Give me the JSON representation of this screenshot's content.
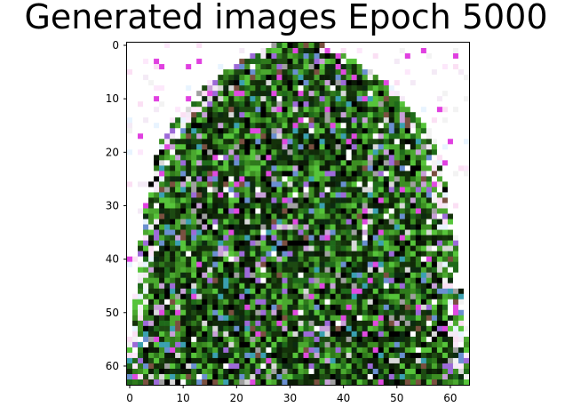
{
  "figure": {
    "title": "Generated images Epoch 5000"
  },
  "image": {
    "description_palette": [
      "#ffffff",
      "#f4eaf6",
      "#0b1a06",
      "#1d4a12",
      "#2f7a1c",
      "#56c43a",
      "#000000",
      "#9d6ad8",
      "#6a8fd0",
      "#e04ae0",
      "#d8d8d8",
      "#7a5040"
    ],
    "grid": [
      64,
      64
    ]
  },
  "axes": {
    "x_ticks": [
      "0",
      "10",
      "20",
      "30",
      "40",
      "50",
      "60"
    ],
    "y_ticks": [
      "0",
      "10",
      "20",
      "30",
      "40",
      "50",
      "60"
    ],
    "x_range": [
      -0.5,
      63.5
    ],
    "y_range": [
      -0.5,
      63.5
    ]
  }
}
